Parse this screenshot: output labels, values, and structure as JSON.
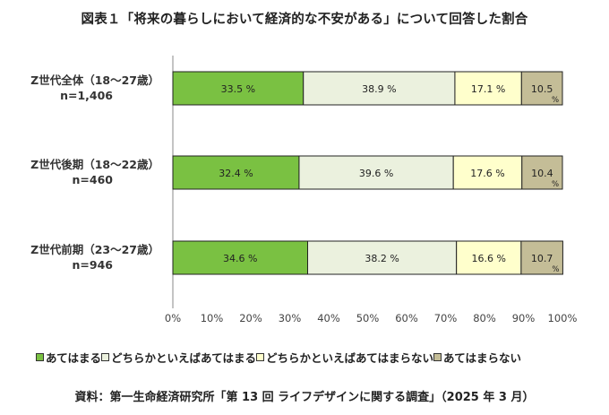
{
  "title": "図表１「将来の暮らしにおいて経済的な不安がある」について回答した割合",
  "source": "資料：第一生命経済研究所「第 13 回 ライフデザインに関する調査」（2025 年 3 月）",
  "chart_data": {
    "type": "bar",
    "orientation": "horizontal",
    "stacked": true,
    "percent_sign": "%",
    "categories": [
      {
        "name": "Z世代全体（18～27歳）",
        "n": "n=1,406"
      },
      {
        "name": "Z世代後期（18～22歳）",
        "n": "n=460"
      },
      {
        "name": "Z世代前期（23～27歳）",
        "n": "n=946"
      }
    ],
    "series": [
      {
        "name": "あてはまる",
        "color": "#7ac142",
        "values": [
          33.5,
          32.4,
          34.6
        ],
        "labels": [
          "33.5 %",
          "32.4 %",
          "34.6 %"
        ]
      },
      {
        "name": "どちらかといえばあてはまる",
        "color": "#ebf1de",
        "values": [
          38.9,
          39.6,
          38.2
        ],
        "labels": [
          "38.9 %",
          "39.6 %",
          "38.2 %"
        ]
      },
      {
        "name": "どちらかといえばあてはまらない",
        "color": "#ffffcc",
        "values": [
          17.1,
          17.6,
          16.6
        ],
        "labels": [
          "17.1 %",
          "17.6 %",
          "16.6 %"
        ]
      },
      {
        "name": "あてはまらない",
        "color": "#c4bd97",
        "values": [
          10.5,
          10.4,
          10.7
        ],
        "labels": [
          "10.5",
          "10.4",
          "10.7"
        ]
      }
    ],
    "x_ticks": [
      "0%",
      "10%",
      "20%",
      "30%",
      "40%",
      "50%",
      "60%",
      "70%",
      "80%",
      "90%",
      "100%"
    ],
    "xlim": [
      0,
      100
    ],
    "legend_position": "bottom"
  }
}
